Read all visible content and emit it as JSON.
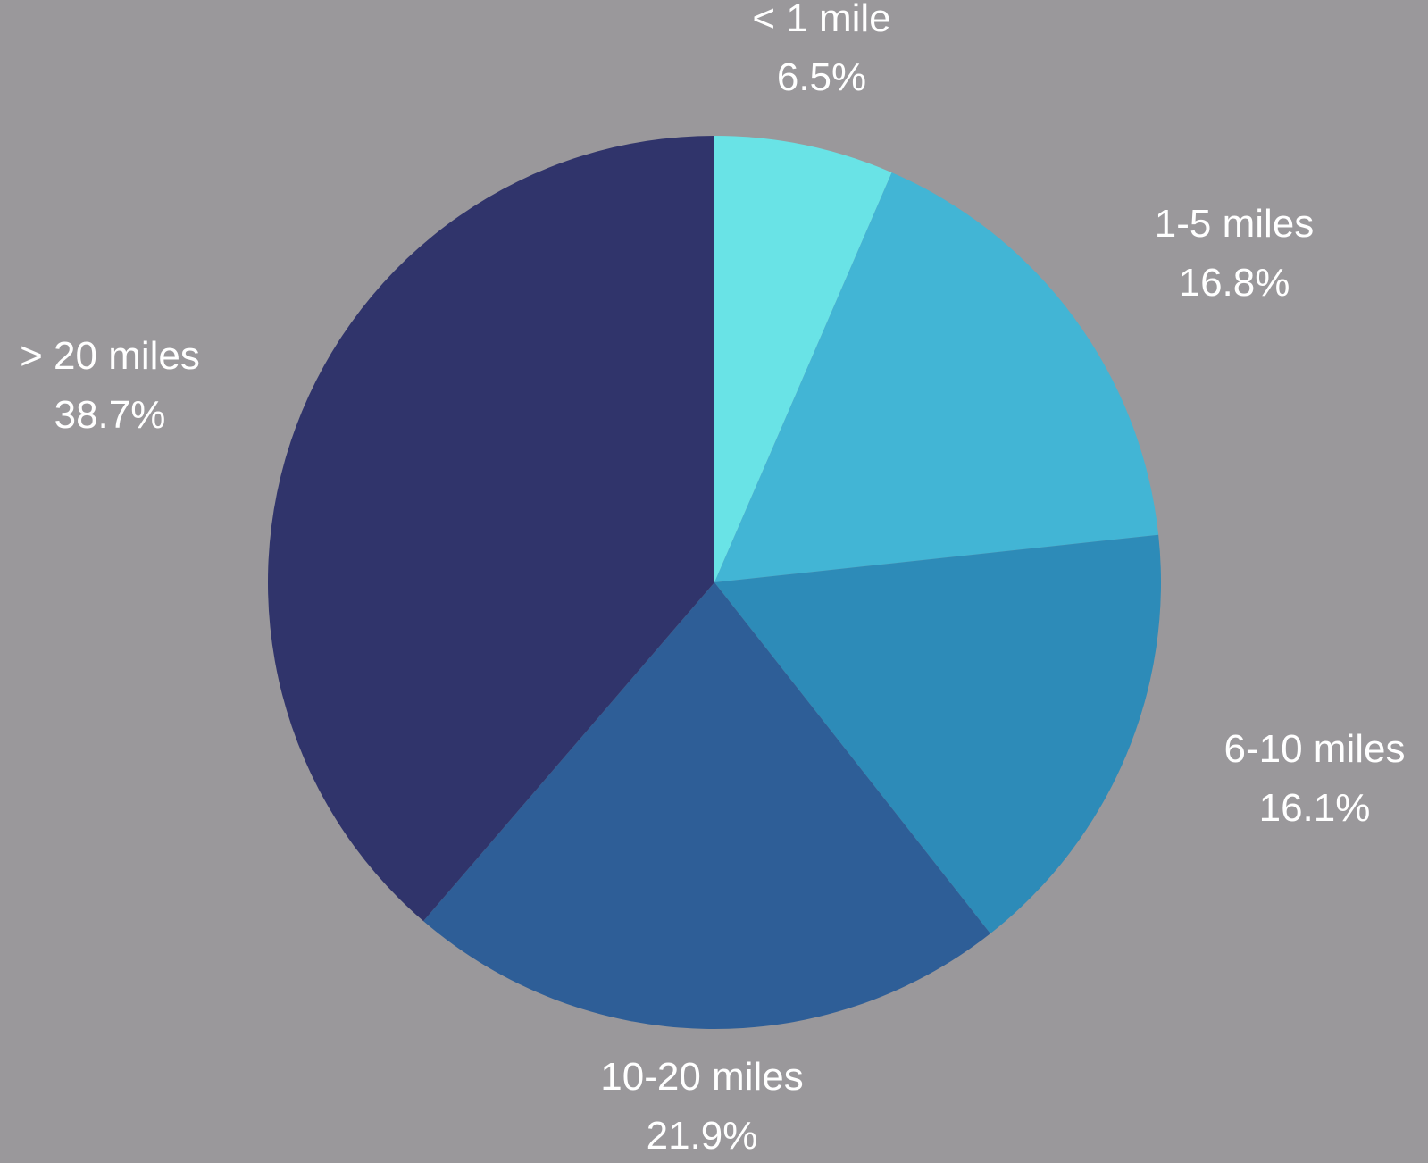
{
  "background_color": "#9a989b",
  "chart_data": {
    "type": "pie",
    "start": "12 o'clock",
    "direction": "clockwise",
    "label_color": "#ffffff",
    "slices": [
      {
        "label": "< 1 mile",
        "value": 6.5,
        "value_label": "6.5%",
        "color": "#69e3e6"
      },
      {
        "label": "1-5 miles",
        "value": 16.8,
        "value_label": "16.8%",
        "color": "#42b5d5"
      },
      {
        "label": "6-10 miles",
        "value": 16.1,
        "value_label": "16.1%",
        "color": "#2d8bb8"
      },
      {
        "label": "10-20 miles",
        "value": 21.9,
        "value_label": "21.9%",
        "color": "#2e5e97"
      },
      {
        "label": "> 20 miles",
        "value": 38.7,
        "value_label": "38.7%",
        "color": "#30346b"
      }
    ]
  }
}
